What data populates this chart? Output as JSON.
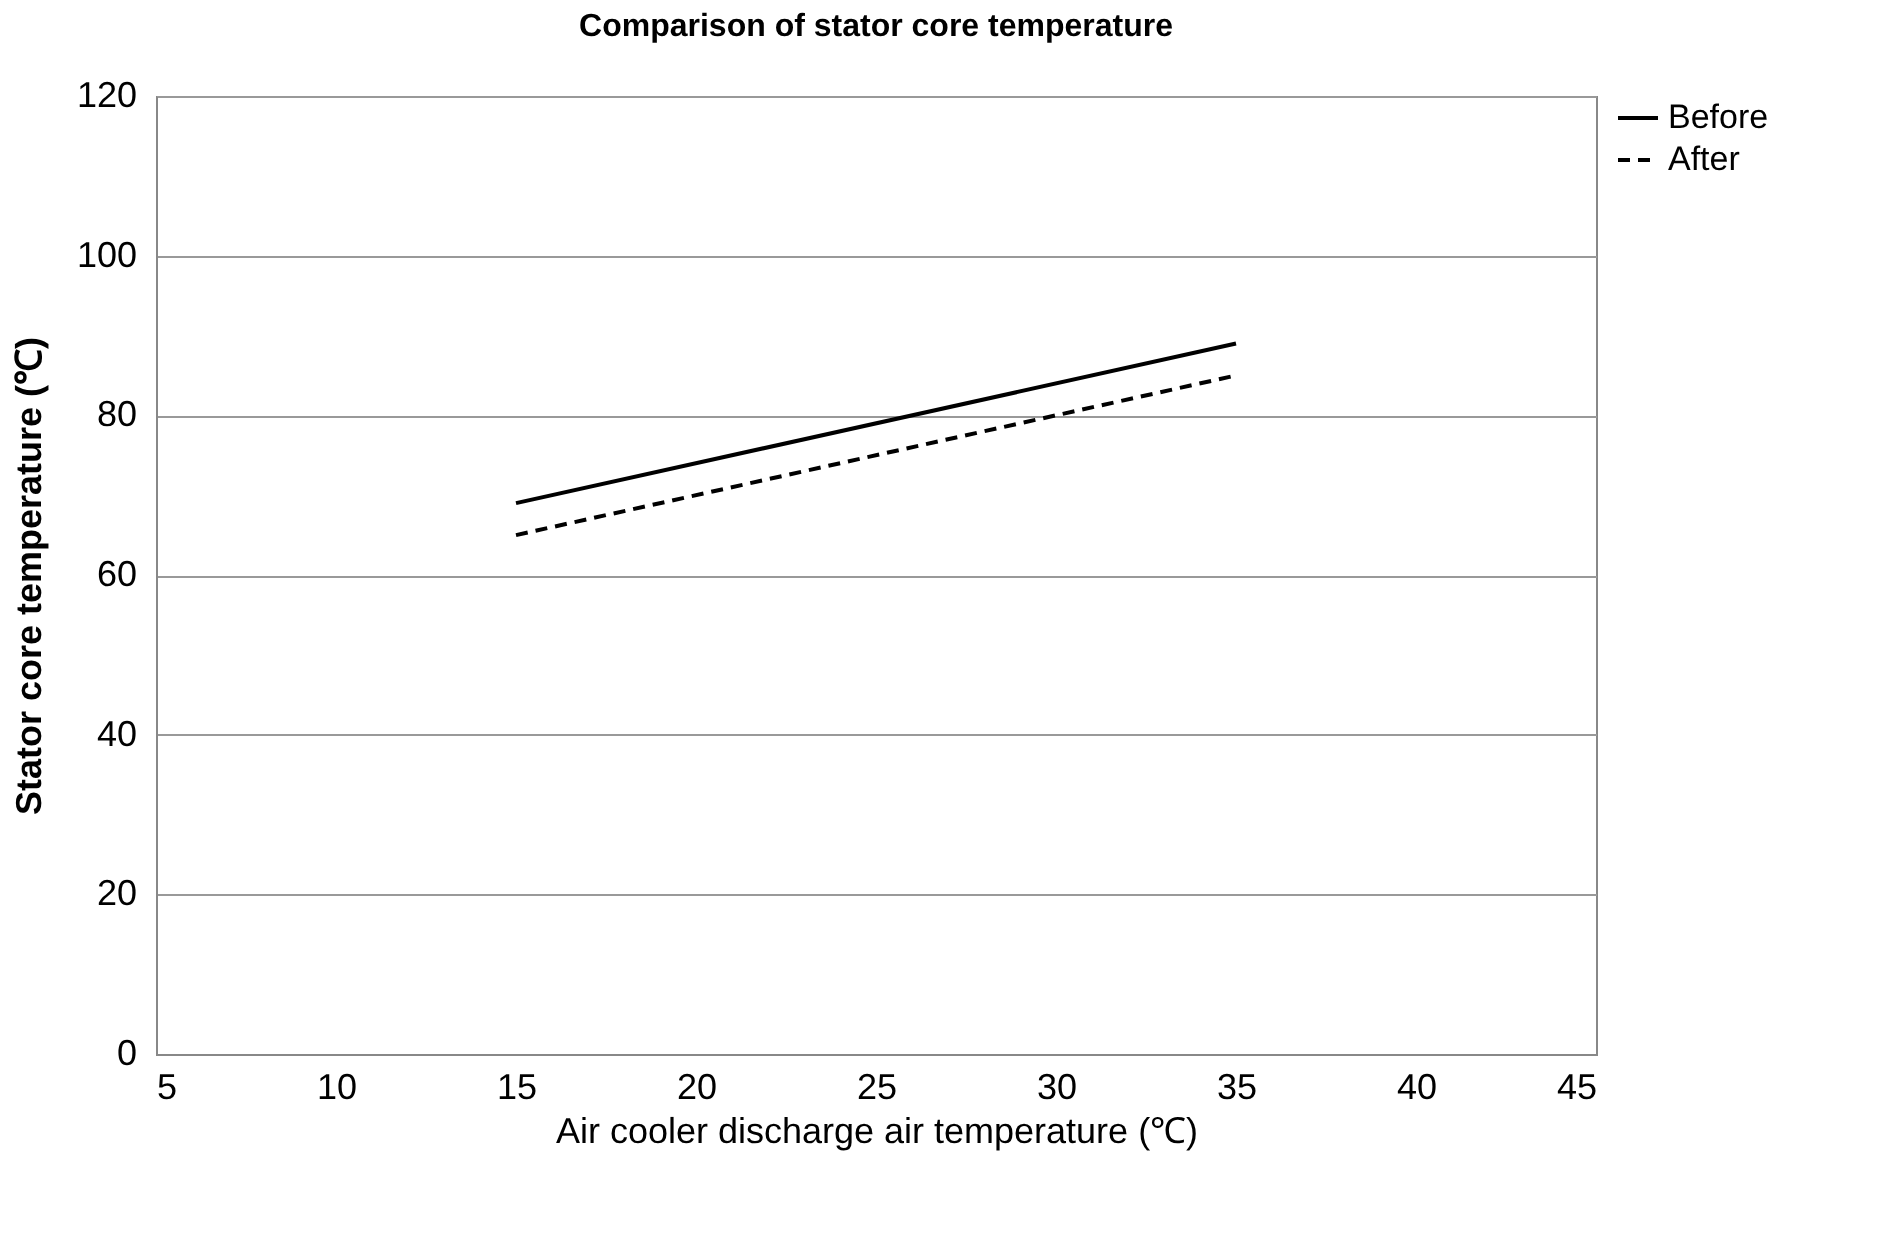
{
  "chart_data": {
    "type": "line",
    "title": "Comparison of stator core temperature",
    "xlabel": "Air cooler discharge air temperature  (℃)",
    "ylabel": "Stator core temperature  (℃)",
    "x": [
      15,
      35
    ],
    "series": [
      {
        "name": "Before",
        "color": "#000000",
        "values": [
          69,
          89
        ],
        "line_style": "solid"
      },
      {
        "name": "After",
        "color": "#000000",
        "values": [
          65,
          85
        ],
        "line_style": "dashed"
      }
    ],
    "xlim": [
      5,
      45
    ],
    "xticks": [
      5,
      10,
      15,
      20,
      25,
      30,
      35,
      40,
      45
    ],
    "ylim": [
      0,
      120
    ],
    "yticks": [
      0,
      20,
      40,
      60,
      80,
      100,
      120
    ],
    "grid": "y",
    "legend": "right",
    "marker": "none"
  }
}
